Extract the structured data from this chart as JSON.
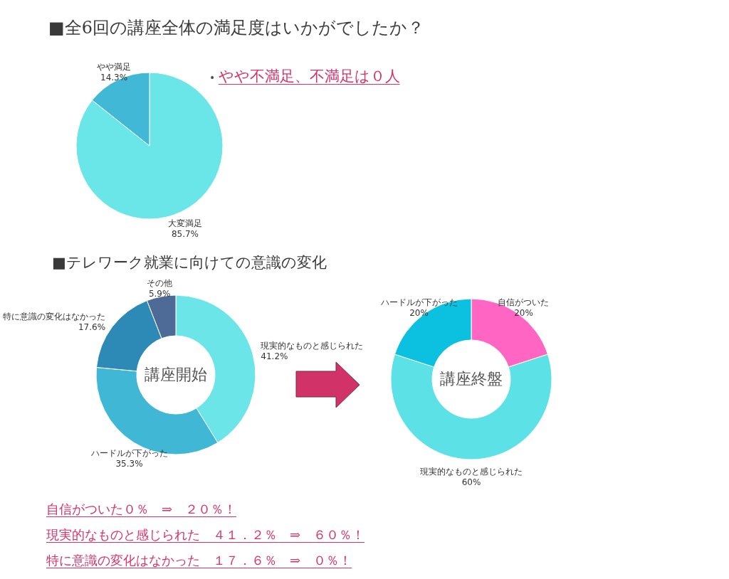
{
  "chart_data": [
    {
      "type": "pie",
      "title": "■全6回の講座全体の満足度はいかがでしたか？",
      "categories": [
        "大変満足",
        "やや満足"
      ],
      "values": [
        85.7,
        14.3
      ],
      "colors": [
        "#6ae6e8",
        "#41b8d5"
      ],
      "value_labels": [
        "85.7%",
        "14.3%"
      ],
      "annotations": [
        "• やや不満足、不満足は０人"
      ]
    },
    {
      "type": "donut",
      "title": "■テレワーク就業に向けての意識の変化",
      "subtitle": "講座開始",
      "categories": [
        "現実的なものと感じられた",
        "ハードルが下がった",
        "特に意識の変化はなかった",
        "その他"
      ],
      "values": [
        41.2,
        35.3,
        17.6,
        5.9
      ],
      "colors": [
        "#6ce5e8",
        "#41b7d6",
        "#2d8ab7",
        "#4e6b98"
      ],
      "value_labels": [
        "41.2%",
        "35.3%",
        "17.6%",
        "5.9%"
      ],
      "annotations": [
        "自信がついた０％　⇒　２０％！",
        "現実的なものと感じられた　４１．２％　⇒　６０％！",
        "特に意識の変化はなかった　１７．６％　⇒　０％！"
      ]
    },
    {
      "type": "donut",
      "subtitle": "講座終盤",
      "categories": [
        "自信がついた",
        "現実的なものと感じられた",
        "ハードルが下がった"
      ],
      "values": [
        20,
        60,
        20
      ],
      "colors": [
        "#ff66c4",
        "#5ce1e6",
        "#0cc0df"
      ],
      "value_labels": [
        "20%",
        "60%",
        "20%"
      ]
    }
  ]
}
